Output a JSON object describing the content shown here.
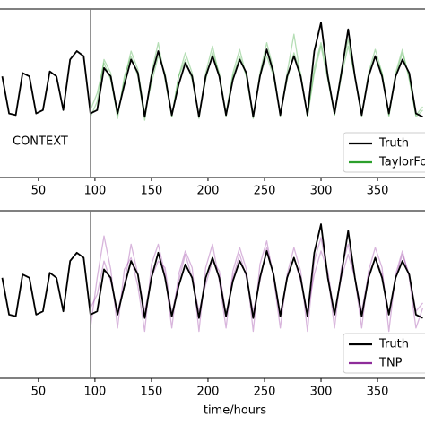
{
  "chart_data": [
    {
      "type": "line",
      "x": [
        18,
        24,
        30,
        36,
        42,
        48,
        54,
        60,
        66,
        72,
        78,
        84,
        90,
        96,
        102,
        108,
        114,
        120,
        126,
        132,
        138,
        144,
        150,
        156,
        162,
        168,
        174,
        180,
        186,
        192,
        198,
        204,
        210,
        216,
        222,
        228,
        234,
        240,
        246,
        252,
        258,
        264,
        270,
        276,
        282,
        288,
        294,
        300,
        306,
        312,
        318,
        324,
        330,
        336,
        342,
        348,
        354,
        360,
        366,
        372,
        378,
        384,
        390
      ],
      "xlim": [
        16,
        392
      ],
      "ylim": [
        0,
        1
      ],
      "xticks": [
        50,
        100,
        150,
        200,
        250,
        300,
        350
      ],
      "vline": 96,
      "annotation": "CONTEXT",
      "legend": "lower right",
      "series": [
        {
          "name": "Truth",
          "color": "#000000",
          "values": [
            0.6,
            0.38,
            0.37,
            0.62,
            0.6,
            0.38,
            0.4,
            0.63,
            0.6,
            0.4,
            0.7,
            0.75,
            0.72,
            0.38,
            0.4,
            0.65,
            0.6,
            0.38,
            0.55,
            0.7,
            0.62,
            0.36,
            0.6,
            0.75,
            0.6,
            0.37,
            0.55,
            0.68,
            0.6,
            0.36,
            0.6,
            0.72,
            0.6,
            0.37,
            0.58,
            0.7,
            0.62,
            0.36,
            0.6,
            0.76,
            0.62,
            0.37,
            0.6,
            0.72,
            0.6,
            0.37,
            0.75,
            0.92,
            0.6,
            0.38,
            0.62,
            0.88,
            0.6,
            0.37,
            0.6,
            0.72,
            0.6,
            0.38,
            0.6,
            0.7,
            0.62,
            0.38,
            0.36
          ]
        },
        {
          "name": "TaylorFormer",
          "color": "#2ca02c",
          "values": [
            [
              null,
              null,
              null,
              null,
              null,
              null,
              null,
              null,
              null,
              null,
              null,
              null,
              null,
              0.36,
              0.45,
              0.7,
              0.62,
              0.35,
              0.6,
              0.72,
              0.6,
              0.34,
              0.62,
              0.8,
              0.58,
              0.36,
              0.6,
              0.74,
              0.62,
              0.35,
              0.62,
              0.78,
              0.6,
              0.36,
              0.6,
              0.72,
              0.6,
              0.35,
              0.62,
              0.8,
              0.64,
              0.36,
              0.62,
              0.85,
              0.6,
              0.36,
              0.65,
              0.8,
              0.62,
              0.37,
              0.6,
              0.78,
              0.6,
              0.36,
              0.62,
              0.76,
              0.62,
              0.37,
              0.6,
              0.74,
              0.6,
              0.36,
              0.4
            ],
            [
              null,
              null,
              null,
              null,
              null,
              null,
              null,
              null,
              null,
              null,
              null,
              null,
              null,
              0.4,
              0.5,
              0.68,
              0.58,
              0.37,
              0.58,
              0.75,
              0.64,
              0.38,
              0.56,
              0.72,
              0.62,
              0.36,
              0.6,
              0.7,
              0.58,
              0.37,
              0.58,
              0.74,
              0.62,
              0.38,
              0.62,
              0.76,
              0.6,
              0.37,
              0.6,
              0.72,
              0.6,
              0.38,
              0.58,
              0.74,
              0.62,
              0.36,
              0.62,
              0.78,
              0.58,
              0.37,
              0.64,
              0.82,
              0.6,
              0.38,
              0.6,
              0.72,
              0.62,
              0.36,
              0.62,
              0.76,
              0.58,
              0.37,
              0.42
            ]
          ]
        }
      ]
    },
    {
      "type": "line",
      "x": [
        18,
        24,
        30,
        36,
        42,
        48,
        54,
        60,
        66,
        72,
        78,
        84,
        90,
        96,
        102,
        108,
        114,
        120,
        126,
        132,
        138,
        144,
        150,
        156,
        162,
        168,
        174,
        180,
        186,
        192,
        198,
        204,
        210,
        216,
        222,
        228,
        234,
        240,
        246,
        252,
        258,
        264,
        270,
        276,
        282,
        288,
        294,
        300,
        306,
        312,
        318,
        324,
        330,
        336,
        342,
        348,
        354,
        360,
        366,
        372,
        378,
        384,
        390
      ],
      "xlim": [
        16,
        392
      ],
      "ylim": [
        0,
        1
      ],
      "xticks": [
        50,
        100,
        150,
        200,
        250,
        300,
        350
      ],
      "vline": 96,
      "xlabel": "time/hours",
      "legend": "lower right",
      "series": [
        {
          "name": "Truth",
          "color": "#000000",
          "values": [
            0.6,
            0.38,
            0.37,
            0.62,
            0.6,
            0.38,
            0.4,
            0.63,
            0.6,
            0.4,
            0.7,
            0.75,
            0.72,
            0.38,
            0.4,
            0.65,
            0.6,
            0.38,
            0.55,
            0.7,
            0.62,
            0.36,
            0.6,
            0.75,
            0.6,
            0.37,
            0.55,
            0.68,
            0.6,
            0.36,
            0.6,
            0.72,
            0.6,
            0.37,
            0.58,
            0.7,
            0.62,
            0.36,
            0.6,
            0.76,
            0.62,
            0.37,
            0.6,
            0.72,
            0.6,
            0.37,
            0.75,
            0.92,
            0.6,
            0.38,
            0.62,
            0.88,
            0.6,
            0.37,
            0.6,
            0.72,
            0.6,
            0.38,
            0.6,
            0.7,
            0.62,
            0.38,
            0.36
          ]
        },
        {
          "name": "TNP",
          "color": "#8e2c9a",
          "values": [
            [
              null,
              null,
              null,
              null,
              null,
              null,
              null,
              null,
              null,
              null,
              null,
              null,
              null,
              0.3,
              0.6,
              0.85,
              0.65,
              0.3,
              0.65,
              0.72,
              0.55,
              0.28,
              0.68,
              0.8,
              0.62,
              0.3,
              0.62,
              0.76,
              0.66,
              0.28,
              0.66,
              0.8,
              0.58,
              0.3,
              0.64,
              0.78,
              0.65,
              0.28,
              0.68,
              0.82,
              0.6,
              0.3,
              0.62,
              0.78,
              0.64,
              0.28,
              0.7,
              0.84,
              0.62,
              0.3,
              0.66,
              0.8,
              0.6,
              0.3,
              0.64,
              0.78,
              0.66,
              0.28,
              0.62,
              0.76,
              0.6,
              0.3,
              0.42
            ],
            [
              null,
              null,
              null,
              null,
              null,
              null,
              null,
              null,
              null,
              null,
              null,
              null,
              null,
              0.42,
              0.5,
              0.7,
              0.58,
              0.4,
              0.56,
              0.8,
              0.62,
              0.4,
              0.6,
              0.7,
              0.66,
              0.38,
              0.58,
              0.74,
              0.6,
              0.4,
              0.56,
              0.7,
              0.64,
              0.38,
              0.6,
              0.74,
              0.6,
              0.4,
              0.58,
              0.78,
              0.62,
              0.38,
              0.6,
              0.72,
              0.58,
              0.4,
              0.62,
              0.76,
              0.64,
              0.38,
              0.6,
              0.74,
              0.6,
              0.4,
              0.62,
              0.72,
              0.62,
              0.38,
              0.6,
              0.74,
              0.62,
              0.4,
              0.45
            ]
          ]
        }
      ]
    }
  ]
}
